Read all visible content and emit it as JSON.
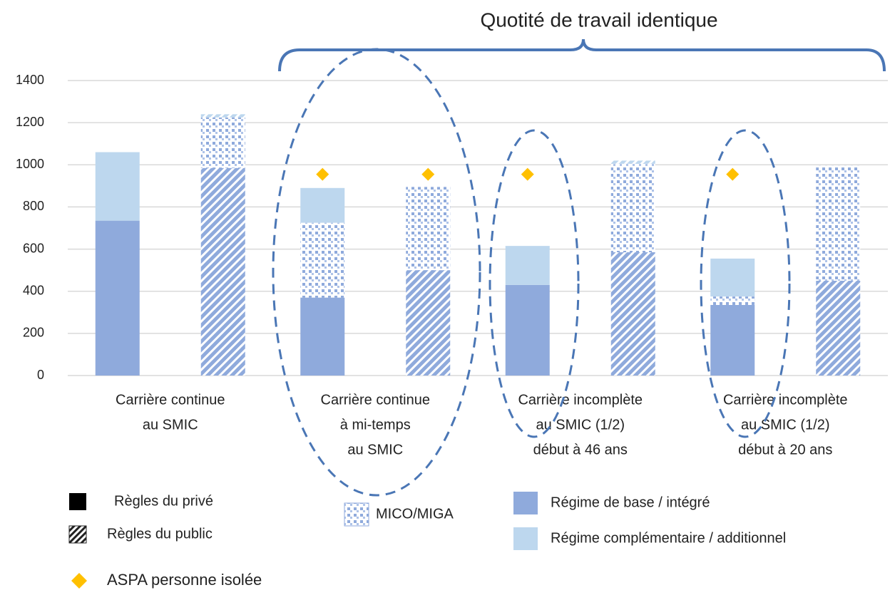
{
  "chart_data": {
    "type": "bar",
    "title": "Quotité de travail identique",
    "categories": [
      [
        "Carrière continue",
        "au SMIC"
      ],
      [
        "Carrière continue",
        "à mi-temps",
        "au SMIC"
      ],
      [
        "Carrière incomplète",
        "au SMIC (1/2)",
        "début à 46 ans"
      ],
      [
        "Carrière incomplète",
        "au SMIC (1/2)",
        "début à 20 ans"
      ]
    ],
    "rules": [
      {
        "name": "Règles du privé",
        "pattern": "solid"
      },
      {
        "name": "Règles du public",
        "pattern": "hatch"
      }
    ],
    "series": [
      {
        "name": "Régime de base / intégré",
        "color": "#8faadc",
        "fill": "plain",
        "values": [
          [
            735,
            985
          ],
          [
            370,
            500
          ],
          [
            430,
            585
          ],
          [
            335,
            450
          ]
        ]
      },
      {
        "name": "MICO/MIGA",
        "color": "#8faadc",
        "fill": "dots",
        "values": [
          [
            0,
            240
          ],
          [
            355,
            395
          ],
          [
            0,
            420
          ],
          [
            40,
            545
          ]
        ]
      },
      {
        "name": "Régime complémentaire / additionnel",
        "color": "#bdd7ee",
        "fill": "plain",
        "values": [
          [
            325,
            15
          ],
          [
            165,
            0
          ],
          [
            185,
            15
          ],
          [
            180,
            0
          ]
        ]
      }
    ],
    "markers": {
      "name": "ASPA personne isolée",
      "color": "#ffc000",
      "values": [
        [
          null,
          null
        ],
        [
          955,
          955
        ],
        [
          955,
          null
        ],
        [
          955,
          null
        ]
      ]
    },
    "ylim": [
      0,
      1400
    ],
    "yticks": [
      0,
      200,
      400,
      600,
      800,
      1000,
      1200,
      1400
    ],
    "grid": true
  }
}
